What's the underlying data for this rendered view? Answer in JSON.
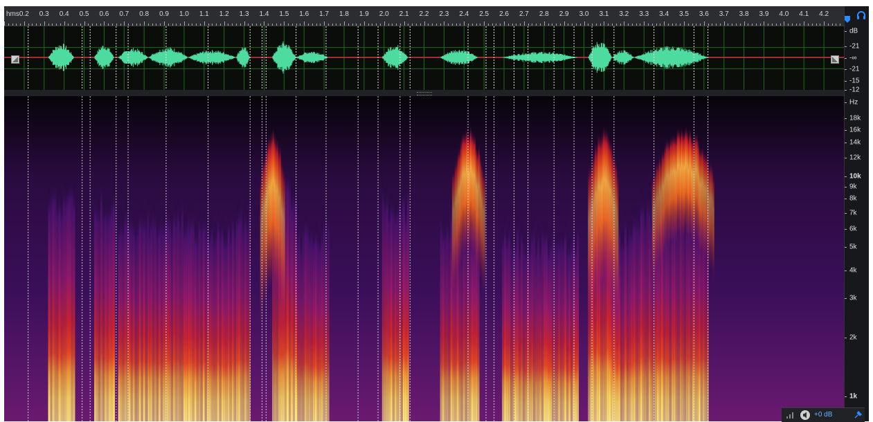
{
  "ruler": {
    "unit_label": "hms",
    "labels": [
      "0.2",
      "0.3",
      "0.4",
      "0.5",
      "0.6",
      "0.7",
      "0.8",
      "0.9",
      "1.0",
      "1.1",
      "1.2",
      "1.3",
      "1.4",
      "1.5",
      "1.6",
      "1.7",
      "1.8",
      "1.9",
      "2.0",
      "2.1",
      "2.2",
      "2.3",
      "2.4",
      "2.5",
      "2.6",
      "2.7",
      "2.8",
      "2.9",
      "3.0",
      "3.1",
      "3.2",
      "3.3",
      "3.4",
      "3.5",
      "3.6",
      "3.7",
      "3.8",
      "3.9",
      "4.0",
      "4.1",
      "4.2"
    ]
  },
  "waveform_axis": {
    "unit": "dB",
    "labels": [
      "-21",
      "-∞",
      "-21",
      "-15",
      "-12"
    ]
  },
  "spectrogram_axis": {
    "unit": "Hz",
    "labels": [
      "18k",
      "16k",
      "14k",
      "12k",
      "10k",
      "9k",
      "8k",
      "7k",
      "6k",
      "5k",
      "4k",
      "3k",
      "2k",
      "1k"
    ],
    "bold_labels": [
      "10k",
      "1k"
    ]
  },
  "gain": {
    "label": "+0 dB"
  },
  "time_range": {
    "start": 0.1,
    "end": 4.3
  },
  "markers": [
    0.22,
    0.49,
    0.53,
    0.66,
    0.72,
    0.91,
    1.12,
    1.33,
    1.39,
    1.41,
    1.56,
    1.71,
    1.87,
    1.97,
    2.08,
    2.13,
    2.42,
    2.51,
    2.55,
    2.65,
    2.72,
    2.85,
    2.95,
    3.04,
    3.15,
    3.35,
    3.55,
    3.62
  ],
  "segments": [
    {
      "start": 0.32,
      "end": 0.45,
      "level": 0.75
    },
    {
      "start": 0.55,
      "end": 0.65,
      "level": 0.7
    },
    {
      "start": 0.67,
      "end": 0.82,
      "level": 0.5
    },
    {
      "start": 0.82,
      "end": 1.02,
      "level": 0.55
    },
    {
      "start": 1.02,
      "end": 1.26,
      "level": 0.4
    },
    {
      "start": 1.26,
      "end": 1.33,
      "level": 0.6
    },
    {
      "start": 1.44,
      "end": 1.56,
      "level": 0.85
    },
    {
      "start": 1.56,
      "end": 1.72,
      "level": 0.35
    },
    {
      "start": 1.99,
      "end": 2.12,
      "level": 0.7
    },
    {
      "start": 2.28,
      "end": 2.47,
      "level": 0.45
    },
    {
      "start": 2.59,
      "end": 2.97,
      "level": 0.3
    },
    {
      "start": 3.02,
      "end": 3.14,
      "level": 0.9
    },
    {
      "start": 3.14,
      "end": 3.25,
      "level": 0.4
    },
    {
      "start": 3.25,
      "end": 3.62,
      "level": 0.6
    }
  ],
  "sibilants": [
    {
      "start": 1.38,
      "end": 1.5,
      "level": 1.0
    },
    {
      "start": 2.34,
      "end": 2.5,
      "level": 0.8
    },
    {
      "start": 3.02,
      "end": 3.17,
      "level": 1.0
    },
    {
      "start": 3.34,
      "end": 3.65,
      "level": 0.7
    }
  ],
  "icons": {
    "playhead": "pin-icon",
    "monitor": "headphones-icon",
    "zoom_left": "corner-zoom-icon",
    "zoom_right": "corner-zoom-icon",
    "speaker": "speaker-icon"
  },
  "colors": {
    "waveform": "#4ddba0",
    "center_line": "#d23a3a",
    "grid": "#1e6b1e",
    "marker": "#e6e6e6",
    "accent": "#2a8cff"
  }
}
